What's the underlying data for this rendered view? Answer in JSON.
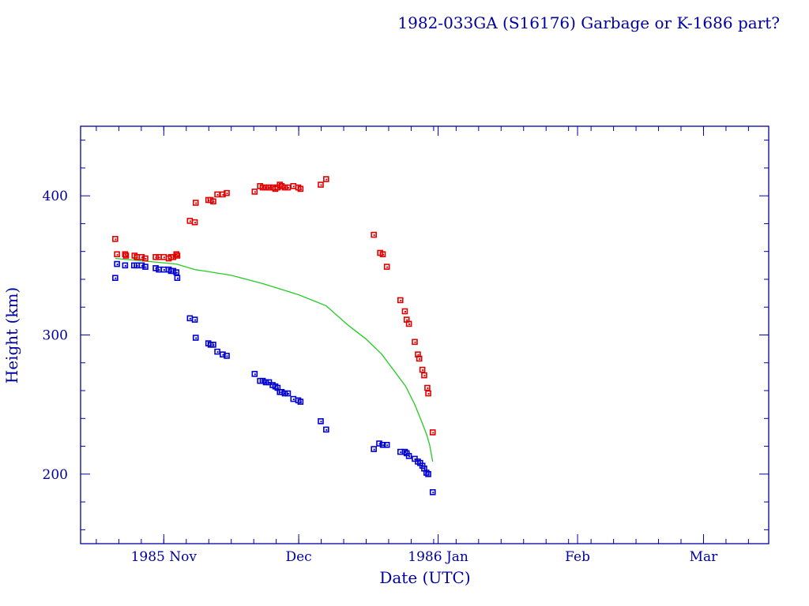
{
  "chart_data": {
    "type": "scatter",
    "title": "1982-033GA (S16176) Garbage or K-1686 part?",
    "xlabel": "Date (UTC)",
    "ylabel": "Height (km)",
    "x_units": "days since 1985 Nov 1",
    "xlim": [
      -18.5,
      134.5
    ],
    "ylim": [
      150,
      450
    ],
    "grid": false,
    "x_ticks": [
      {
        "value": 0,
        "label": "1985 Nov"
      },
      {
        "value": 30,
        "label": "Dec"
      },
      {
        "value": 61,
        "label": "1986 Jan"
      },
      {
        "value": 92,
        "label": "Feb"
      },
      {
        "value": 120,
        "label": "Mar"
      }
    ],
    "y_ticks": [
      {
        "value": 200,
        "label": "200"
      },
      {
        "value": 300,
        "label": "300"
      },
      {
        "value": 400,
        "label": "400"
      }
    ],
    "colors": {
      "axis": "#0000a0",
      "apogee": "#e00000",
      "perigee": "#0000d0",
      "mean": "#22cc22"
    },
    "series": [
      {
        "name": "apogee",
        "kind": "points",
        "x": [
          -10.8,
          -10.4,
          -8.6,
          -8.4,
          -6.5,
          -6.0,
          -4.9,
          -4.1,
          -1.8,
          -1.1,
          0.0,
          1.1,
          1.6,
          2.1,
          2.8,
          3.0,
          5.8,
          6.9,
          7.1,
          9.9,
          10.4,
          11.0,
          11.9,
          13.1,
          14.0,
          20.2,
          21.4,
          22.0,
          22.7,
          23.4,
          24.2,
          24.8,
          25.3,
          25.8,
          26.2,
          26.9,
          27.6,
          28.8,
          29.9,
          30.4,
          34.9,
          36.1,
          46.7,
          48.1,
          48.7,
          49.6,
          52.6,
          53.6,
          54.0,
          54.5,
          55.8,
          56.5,
          56.8,
          57.5,
          57.9,
          58.6,
          58.8,
          59.8
        ],
        "y": [
          369,
          358,
          358,
          357,
          357,
          356,
          356,
          355,
          356,
          356,
          356,
          355,
          356,
          356,
          358,
          357,
          382,
          381,
          395,
          397,
          397,
          396,
          401,
          401,
          402,
          403,
          407,
          406,
          406,
          406,
          406,
          405,
          406,
          408,
          407,
          406,
          406,
          407,
          406,
          405,
          408,
          412,
          372,
          359,
          358,
          349,
          325,
          317,
          311,
          308,
          295,
          286,
          283,
          275,
          271,
          262,
          258,
          230
        ]
      },
      {
        "name": "perigee",
        "kind": "points",
        "x": [
          -10.8,
          -10.4,
          -8.6,
          -6.6,
          -6.0,
          -4.9,
          -4.1,
          -1.8,
          -1.1,
          0.0,
          1.1,
          1.6,
          2.1,
          2.8,
          3.0,
          5.8,
          6.9,
          7.1,
          9.9,
          10.4,
          11.0,
          11.9,
          13.1,
          14.0,
          20.2,
          21.4,
          22.0,
          22.7,
          23.4,
          24.2,
          24.8,
          25.3,
          25.8,
          26.2,
          26.9,
          27.6,
          28.8,
          29.9,
          30.4,
          34.9,
          36.1,
          46.7,
          47.9,
          48.7,
          49.6,
          52.6,
          53.6,
          54.0,
          54.5,
          55.8,
          56.5,
          57.0,
          57.5,
          57.9,
          58.4,
          58.8,
          59.8
        ],
        "y": [
          341,
          351,
          350,
          350,
          350,
          350,
          349,
          348,
          347,
          347,
          347,
          346,
          346,
          345,
          341,
          312,
          311,
          298,
          294,
          293,
          293,
          288,
          286,
          285,
          272,
          267,
          267,
          266,
          266,
          264,
          263,
          262,
          259,
          259,
          258,
          258,
          254,
          253,
          252,
          238,
          232,
          218,
          222,
          221,
          221,
          216,
          216,
          215,
          213,
          211,
          209,
          208,
          206,
          204,
          201,
          200,
          187
        ]
      },
      {
        "name": "mean",
        "kind": "line",
        "x": [
          -10.8,
          -4.0,
          2.8,
          6.9,
          14.9,
          21.9,
          29.9,
          36.1,
          41.0,
          45.0,
          48.5,
          51.5,
          53.8,
          55.8,
          57.3,
          58.5,
          59.1,
          59.8
        ],
        "y": [
          355,
          353,
          351,
          347,
          343,
          337,
          329,
          321,
          307,
          297,
          286,
          273,
          263,
          250,
          238,
          228,
          221,
          209
        ]
      }
    ]
  }
}
